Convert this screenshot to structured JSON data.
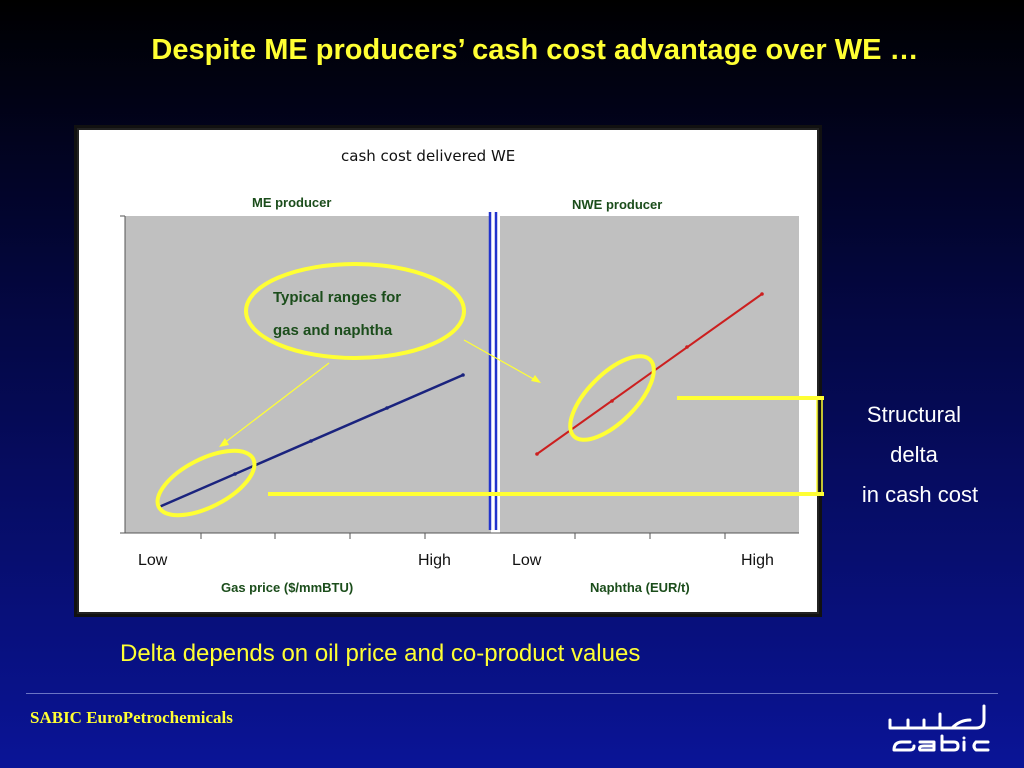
{
  "title": "Despite ME producers’ cash cost advantage over WE …",
  "subtitle": "Delta depends on oil price and co-product values",
  "footer": "SABIC EuroPetrochemicals",
  "logo": "sabic-logo",
  "colors": {
    "title": "#ffff33",
    "plot_bg": "#c0c0c0",
    "me_line": "#1a237e",
    "nwe_line": "#cc1f1f",
    "divider": "#2233cc",
    "highlight": "#ffff33",
    "label_green": "#1b4d1b"
  },
  "chart": {
    "title": "cash cost delivered WE",
    "left_panel_label": "ME producer",
    "right_panel_label": "NWE producer",
    "callout_line1": "Typical ranges for",
    "callout_line2": "gas and naphtha",
    "left_tick_low": "Low",
    "left_tick_high": "High",
    "right_tick_low": "Low",
    "right_tick_high": "High",
    "left_xlabel": "Gas price ($/mmBTU)",
    "right_xlabel": "Naphtha (EUR/t)"
  },
  "structural_delta": {
    "line1": "Structural",
    "line2": "delta",
    "line3": "in cash cost"
  }
}
